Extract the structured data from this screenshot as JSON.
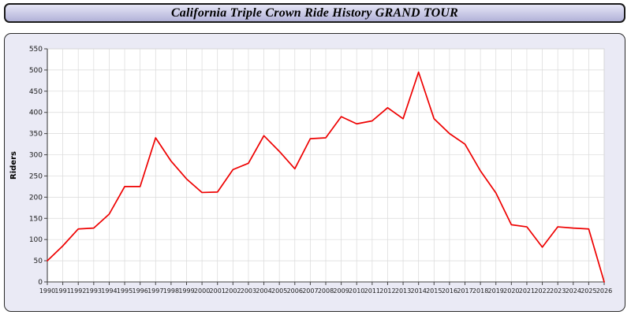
{
  "title": "California Triple Crown Ride History GRAND TOUR",
  "chart_data": {
    "type": "line",
    "x": [
      1990,
      1991,
      1992,
      1993,
      1994,
      1995,
      1996,
      1997,
      1998,
      1999,
      2000,
      2001,
      2002,
      2003,
      2004,
      2005,
      2006,
      2007,
      2008,
      2009,
      2010,
      2011,
      2012,
      2013,
      2014,
      2015,
      2016,
      2017,
      2018,
      2019,
      2020,
      2021,
      2022,
      2023,
      2024,
      2025,
      2026
    ],
    "series": [
      {
        "name": "Riders",
        "values": [
          50,
          85,
          125,
          127,
          160,
          225,
          225,
          340,
          285,
          243,
          211,
          212,
          265,
          280,
          345,
          308,
          267,
          338,
          340,
          390,
          373,
          380,
          411,
          385,
          495,
          385,
          350,
          325,
          262,
          210,
          135,
          130,
          82,
          130,
          127,
          125,
          0
        ]
      }
    ],
    "title": "California Triple Crown Ride History GRAND TOUR",
    "xlabel": "",
    "ylabel": "Riders",
    "ylim": [
      0,
      550
    ],
    "ytick_step": 50,
    "grid": true,
    "legend": "none",
    "line_color": "#ee0000",
    "plot_bg": "#ffffff",
    "panel_bg": "#eaeaf5",
    "grid_color": "#d9d9d9",
    "axis_color": "#444444",
    "tick_label_color": "#1a1a1a"
  }
}
